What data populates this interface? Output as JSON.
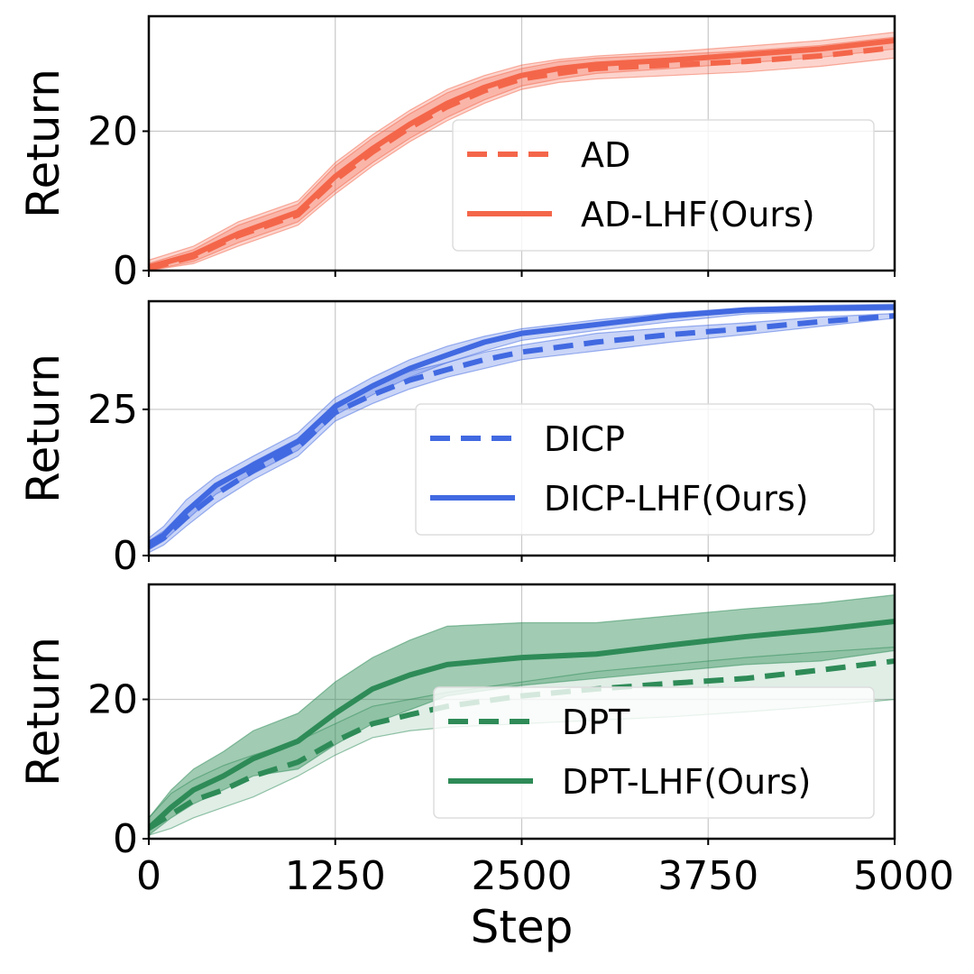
{
  "chart_data": [
    {
      "type": "line",
      "panel": "top",
      "xlabel": "",
      "ylabel": "Return",
      "xlim": [
        0,
        5000
      ],
      "ylim": [
        0,
        36.5
      ],
      "xticks": [
        0,
        1250,
        2500,
        3750,
        5000
      ],
      "yticks": [
        0,
        20
      ],
      "grid": true,
      "legend_position": "lower-right",
      "series": [
        {
          "name": "AD",
          "style": "dashed",
          "color": "#f4664a",
          "x": [
            0,
            300,
            600,
            1000,
            1250,
            1500,
            1750,
            2000,
            2250,
            2500,
            2750,
            3000,
            3500,
            4000,
            4500,
            5000
          ],
          "values": [
            0.3,
            2.0,
            5.0,
            8.0,
            13.0,
            17.0,
            20.5,
            23.5,
            25.8,
            27.5,
            28.3,
            29.0,
            29.5,
            30.0,
            30.8,
            32.0
          ],
          "lower": [
            0.0,
            1.0,
            3.5,
            6.5,
            11.0,
            15.0,
            18.5,
            21.5,
            24.0,
            26.0,
            27.0,
            27.5,
            28.0,
            28.5,
            29.3,
            30.5
          ],
          "upper": [
            1.0,
            3.0,
            6.5,
            9.5,
            15.0,
            19.0,
            22.5,
            25.5,
            27.5,
            29.0,
            30.0,
            30.5,
            31.0,
            31.5,
            32.3,
            33.5
          ]
        },
        {
          "name": "AD-LHF(Ours)",
          "style": "solid",
          "color": "#f4664a",
          "x": [
            0,
            300,
            600,
            1000,
            1250,
            1500,
            1750,
            2000,
            2250,
            2500,
            2750,
            3000,
            3500,
            4000,
            4500,
            5000
          ],
          "values": [
            0.5,
            2.3,
            5.3,
            8.4,
            13.5,
            17.5,
            21.0,
            24.0,
            26.3,
            28.0,
            29.0,
            29.6,
            30.2,
            31.0,
            31.8,
            33.0
          ],
          "lower": [
            0.0,
            1.3,
            4.0,
            7.0,
            11.5,
            15.5,
            19.0,
            22.0,
            24.5,
            26.5,
            27.5,
            28.3,
            29.0,
            29.8,
            30.6,
            31.8
          ],
          "upper": [
            1.5,
            3.5,
            7.0,
            10.0,
            15.5,
            19.5,
            23.0,
            26.0,
            28.0,
            29.5,
            30.3,
            30.8,
            31.4,
            32.2,
            33.0,
            34.2
          ]
        }
      ]
    },
    {
      "type": "line",
      "panel": "middle",
      "xlabel": "",
      "ylabel": "Return",
      "xlim": [
        0,
        5000
      ],
      "ylim": [
        0,
        43.5
      ],
      "xticks": [
        0,
        1250,
        2500,
        3750,
        5000
      ],
      "yticks": [
        0,
        25
      ],
      "grid": true,
      "legend_position": "lower-right",
      "series": [
        {
          "name": "DICP",
          "style": "dashed",
          "color": "#4169e1",
          "x": [
            0,
            100,
            250,
            450,
            700,
            1000,
            1250,
            1500,
            1750,
            2000,
            2250,
            2500,
            3000,
            3500,
            4000,
            4500,
            5000
          ],
          "values": [
            1.5,
            3.0,
            6.5,
            10.5,
            14.5,
            18.5,
            24.5,
            27.5,
            30.0,
            31.8,
            33.5,
            34.8,
            36.5,
            37.8,
            38.8,
            40.0,
            41.0
          ],
          "lower": [
            0.5,
            1.8,
            5.0,
            9.0,
            13.0,
            17.0,
            23.0,
            26.0,
            28.5,
            30.5,
            32.0,
            33.5,
            35.0,
            36.5,
            37.8,
            39.2,
            40.6
          ],
          "upper": [
            2.5,
            4.2,
            8.0,
            12.0,
            16.0,
            20.0,
            26.0,
            29.0,
            31.5,
            33.0,
            34.8,
            36.0,
            38.0,
            39.0,
            39.8,
            40.8,
            41.4
          ]
        },
        {
          "name": "DICP-LHF(Ours)",
          "style": "solid",
          "color": "#4169e1",
          "x": [
            0,
            100,
            250,
            450,
            700,
            1000,
            1250,
            1500,
            1750,
            2000,
            2250,
            2500,
            3000,
            3500,
            4000,
            4500,
            5000
          ],
          "values": [
            2.0,
            3.5,
            7.5,
            12.0,
            15.5,
            19.5,
            25.5,
            29.0,
            32.0,
            34.3,
            36.5,
            38.0,
            39.5,
            41.0,
            42.0,
            42.3,
            42.5
          ],
          "lower": [
            1.0,
            2.5,
            6.0,
            10.5,
            14.0,
            18.0,
            24.0,
            27.5,
            30.5,
            33.0,
            35.0,
            36.8,
            38.5,
            40.0,
            41.3,
            41.8,
            42.0
          ],
          "upper": [
            3.0,
            5.0,
            9.5,
            13.5,
            17.0,
            21.0,
            27.0,
            30.5,
            33.5,
            35.8,
            37.5,
            38.8,
            40.3,
            41.5,
            42.4,
            42.8,
            43.0
          ]
        }
      ]
    },
    {
      "type": "line",
      "panel": "bottom",
      "xlabel": "Step",
      "ylabel": "Return",
      "xlim": [
        0,
        5000
      ],
      "ylim": [
        0,
        36.5
      ],
      "xticks": [
        0,
        1250,
        2500,
        3750,
        5000
      ],
      "yticks": [
        0,
        20
      ],
      "grid": true,
      "legend_position": "lower-right",
      "series": [
        {
          "name": "DPT",
          "style": "dashed",
          "color": "#2e8b57",
          "x": [
            0,
            150,
            300,
            500,
            700,
            1000,
            1250,
            1500,
            1750,
            2000,
            2500,
            3000,
            3500,
            4000,
            4500,
            5000
          ],
          "values": [
            1.5,
            3.5,
            5.5,
            7.0,
            9.0,
            11.0,
            14.0,
            16.5,
            17.8,
            19.0,
            20.5,
            21.5,
            22.3,
            23.0,
            24.2,
            25.5
          ],
          "lower": [
            0.5,
            1.5,
            3.0,
            4.5,
            6.0,
            9.0,
            12.0,
            14.5,
            15.5,
            16.0,
            16.5,
            17.0,
            17.5,
            18.2,
            19.0,
            20.0
          ],
          "upper": [
            3.0,
            6.5,
            8.5,
            10.5,
            12.0,
            14.0,
            16.5,
            19.0,
            20.0,
            21.0,
            22.5,
            24.0,
            25.0,
            26.0,
            26.8,
            27.5
          ]
        },
        {
          "name": "DPT-LHF(Ours)",
          "style": "solid",
          "color": "#2e8b57",
          "x": [
            0,
            150,
            300,
            500,
            700,
            1000,
            1250,
            1500,
            1750,
            2000,
            2500,
            3000,
            3500,
            4000,
            4500,
            5000
          ],
          "values": [
            1.5,
            4.5,
            7.0,
            9.0,
            11.5,
            14.0,
            18.0,
            21.5,
            23.5,
            25.0,
            26.0,
            26.5,
            27.8,
            29.0,
            30.0,
            31.2
          ],
          "lower": [
            0.5,
            3.0,
            5.0,
            7.0,
            9.0,
            10.0,
            13.5,
            16.5,
            18.5,
            20.5,
            22.0,
            23.0,
            24.0,
            25.0,
            25.5,
            27.0
          ],
          "upper": [
            3.0,
            7.0,
            10.0,
            12.5,
            15.5,
            18.0,
            22.5,
            26.0,
            28.5,
            30.5,
            31.0,
            31.0,
            32.0,
            33.0,
            33.8,
            35.0
          ]
        }
      ]
    }
  ]
}
